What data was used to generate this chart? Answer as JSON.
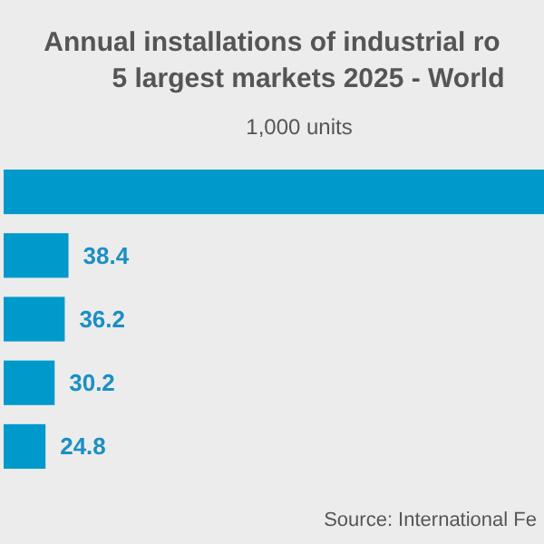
{
  "chart_data": {
    "type": "bar",
    "orientation": "horizontal",
    "title": "Annual installations of industrial ro\n5 largest markets 2025 - World",
    "subtitle": "1,000 units",
    "categories": [
      null,
      null,
      null,
      null,
      null
    ],
    "values": [
      320,
      38.4,
      36.2,
      30.2,
      24.8
    ],
    "value_labels": [
      null,
      "38.4",
      "36.2",
      "30.2",
      "24.8"
    ],
    "xlim": [
      0,
      320
    ],
    "color": "#0099cc",
    "annotations": [
      "Source: International Fe"
    ]
  }
}
